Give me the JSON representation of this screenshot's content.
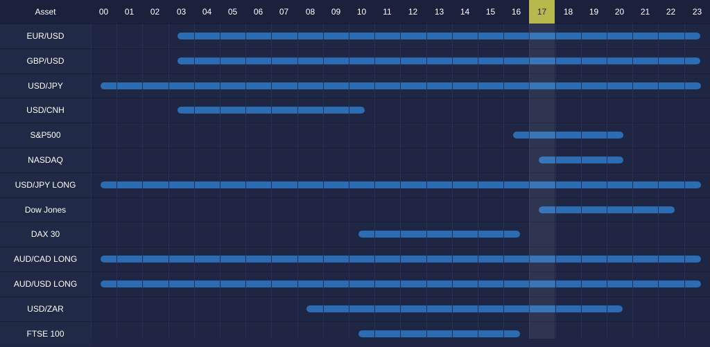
{
  "header": {
    "asset_label": "Asset",
    "hours": [
      "00",
      "01",
      "02",
      "03",
      "04",
      "05",
      "06",
      "07",
      "08",
      "09",
      "10",
      "11",
      "12",
      "13",
      "14",
      "15",
      "16",
      "17",
      "18",
      "19",
      "20",
      "21",
      "22",
      "23"
    ],
    "current_hour_index": 17,
    "current_hour_color": "#b9b84c"
  },
  "colors": {
    "background": "#1e2643",
    "bar": "#2b6cb3"
  },
  "rows": [
    {
      "asset": "EUR/USD",
      "start_hour": 3,
      "end_hour": 23
    },
    {
      "asset": "GBP/USD",
      "start_hour": 3,
      "end_hour": 23
    },
    {
      "asset": "USD/JPY",
      "start_hour": 0,
      "end_hour": 23
    },
    {
      "asset": "USD/CNH",
      "start_hour": 3,
      "end_hour": 10
    },
    {
      "asset": "S&P500",
      "start_hour": 16,
      "end_hour": 20
    },
    {
      "asset": "NASDAQ",
      "start_hour": 17,
      "end_hour": 20
    },
    {
      "asset": "USD/JPY LONG",
      "start_hour": 0,
      "end_hour": 23
    },
    {
      "asset": "Dow Jones",
      "start_hour": 17,
      "end_hour": 22
    },
    {
      "asset": "DAX 30",
      "start_hour": 10,
      "end_hour": 16
    },
    {
      "asset": "AUD/CAD LONG",
      "start_hour": 0,
      "end_hour": 23
    },
    {
      "asset": "AUD/USD LONG",
      "start_hour": 0,
      "end_hour": 23
    },
    {
      "asset": "USD/ZAR",
      "start_hour": 8,
      "end_hour": 20
    },
    {
      "asset": "FTSE 100",
      "start_hour": 10,
      "end_hour": 16
    }
  ]
}
